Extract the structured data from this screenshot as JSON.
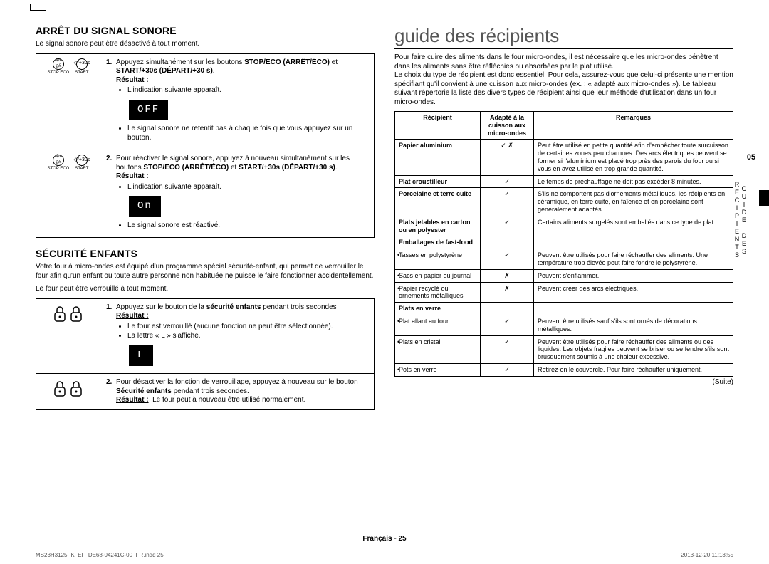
{
  "left": {
    "sec1": {
      "title": "ARRÊT DU SIGNAL SONORE",
      "intro": "Le signal sonore peut être désactivé à tout moment.",
      "icon_btn1_sym": "⊘/⊘ᴱ",
      "icon_btn1_lbl": "STOP ECO",
      "icon_btn2_sym": "◇/+30s",
      "icon_btn2_lbl": "START",
      "step1_num": "1.",
      "step1_text_a": "Appuyez simultanément sur les boutons ",
      "step1_text_b1": "STOP/ECO (ARRÊT/ÉCO)",
      "step1_text_c": " et ",
      "step1_text_b2": "START/+30s (DÉPART/+30 s)",
      "step1_text_d": ".",
      "result_label": "Résultat :",
      "step1_r1": "L'indication suivante apparaît.",
      "step1_badge": "OFF",
      "step1_r2": "Le signal sonore ne retentit pas à chaque fois que vous appuyez sur un bouton.",
      "step2_num": "2.",
      "step2_text_a": "Pour réactiver le signal sonore, appuyez à nouveau simultanément sur les boutons ",
      "step2_text_b1": "STOP/ECO (ARRÊT/ÉCO)",
      "step2_text_c": " et ",
      "step2_text_b2": "START/+30s (DÉPART/+30 s)",
      "step2_text_d": ".",
      "step2_r1": "L'indication suivante apparaît.",
      "step2_badge": "On",
      "step2_r2": "Le signal sonore est réactivé."
    },
    "sec2": {
      "title": "SÉCURITÉ ENFANTS",
      "intro1": "Votre four à micro-ondes est équipé d'un programme spécial sécurité-enfant, qui permet de verrouiller le four afin qu'un enfant ou toute autre personne non habituée ne puisse le faire fonctionner accidentellement.",
      "intro2": "Le four peut être verrouillé à tout moment.",
      "step1_num": "1.",
      "step1_text_a": "Appuyez sur le bouton de la ",
      "step1_text_b": "sécurité enfants",
      "step1_text_c": " pendant trois secondes",
      "step1_r1": "Le four est verrouillé (aucune fonction ne peut être sélectionnée).",
      "step1_r2": "La lettre « L » s'affiche.",
      "step1_badge": "L",
      "step2_num": "2.",
      "step2_text_a": "Pour désactiver la fonction de verrouillage, appuyez à nouveau sur le bouton ",
      "step2_text_b": "Sécurité enfants",
      "step2_text_c": " pendant trois secondes.",
      "step2_res_inline": "Le four peut à nouveau être utilisé normalement."
    }
  },
  "right": {
    "title": "guide des récipients",
    "intro": "Pour faire cuire des aliments dans le four micro-ondes, il est nécessaire que les micro-ondes pénètrent dans les aliments sans être réfléchies ou absorbées par le plat utilisé.\nLe choix du type de récipient est donc essentiel. Pour cela, assurez-vous que celui-ci présente une mention spécifiant qu'il convient à une cuisson aux micro-ondes (ex. : « adapté aux micro-ondes »). Le tableau suivant répertorie la liste des divers types de récipient ainsi que leur méthode d'utilisation dans un four micro-ondes.",
    "tab_num": "05",
    "tab_txt": "GUIDE DES RÉCIPIENTS",
    "th1": "Récipient",
    "th2": "Adapté à la cuisson aux micro-ondes",
    "th3": "Remarques",
    "rows": [
      {
        "c1": "Papier aluminium",
        "bold": true,
        "c2": "✓ ✗",
        "c3": "Peut être utilisé en petite quantité afin d'empêcher toute surcuisson de certaines zones peu charnues. Des arcs électriques peuvent se former si l'aluminium est placé trop près des parois du four ou si vous en avez utilisé en trop grande quantité."
      },
      {
        "c1": "Plat croustilleur",
        "bold": true,
        "c2": "✓",
        "c3": "Le temps de préchauffage ne doit pas excéder 8 minutes."
      },
      {
        "c1": "Porcelaine et terre cuite",
        "bold": true,
        "c2": "✓",
        "c3": "S'ils ne comportent pas d'ornements métalliques, les récipients en céramique, en terre cuite, en faïence et en porcelaine sont généralement adaptés."
      },
      {
        "c1": "Plats jetables en carton ou en polyester",
        "bold": true,
        "c2": "✓",
        "c3": "Certains aliments surgelés sont emballés dans ce type de plat."
      },
      {
        "c1": "Emballages de fast-food",
        "bold": true,
        "c2": "",
        "c3": ""
      },
      {
        "c1": "Tasses en polystyrène",
        "sub": true,
        "c2": "✓",
        "c3": "Peuvent être utilisés pour faire réchauffer des aliments. Une température trop élevée peut faire fondre le polystyrène."
      },
      {
        "c1": "Sacs en papier ou journal",
        "sub": true,
        "c2": "✗",
        "c3": "Peuvent s'enflammer."
      },
      {
        "c1": "Papier recyclé ou ornements métalliques",
        "sub": true,
        "c2": "✗",
        "c3": "Peuvent créer des arcs électriques."
      },
      {
        "c1": "Plats en verre",
        "bold": true,
        "c2": "",
        "c3": ""
      },
      {
        "c1": "Plat allant au four",
        "sub": true,
        "c2": "✓",
        "c3": "Peuvent être utilisés sauf s'ils sont ornés de décorations métalliques."
      },
      {
        "c1": "Plats en cristal",
        "sub": true,
        "c2": "✓",
        "c3": "Peuvent être utilisés pour faire réchauffer des aliments ou des liquides. Les objets fragiles peuvent se briser ou se fendre s'ils sont brusquement soumis à une chaleur excessive."
      },
      {
        "c1": "Pots en verre",
        "sub": true,
        "c2": "✓",
        "c3": "Retirez-en le couvercle. Pour faire réchauffer uniquement."
      }
    ],
    "suite": "(Suite)"
  },
  "footer": {
    "lang": "Français",
    "sep": " - ",
    "page": "25"
  },
  "meta": {
    "fileref": "MS23H3125FK_EF_DE68-04241C-00_FR.indd   25",
    "ts": "2013-12-20    11:13:55"
  }
}
